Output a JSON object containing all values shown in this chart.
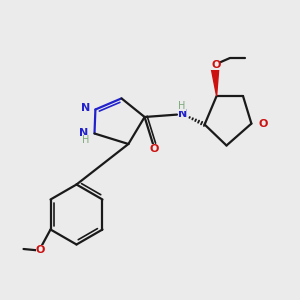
{
  "bg_color": "#ebebeb",
  "bond_color": "#1a1a1a",
  "nitrogen_color": "#2222cc",
  "oxygen_color": "#cc1111",
  "h_color": "#7aaa7a",
  "fig_width": 3.0,
  "fig_height": 3.0,
  "dpi": 100,
  "xlim": [
    0,
    10
  ],
  "ylim": [
    0,
    10
  ],
  "lw": 1.6,
  "lw2": 1.2
}
